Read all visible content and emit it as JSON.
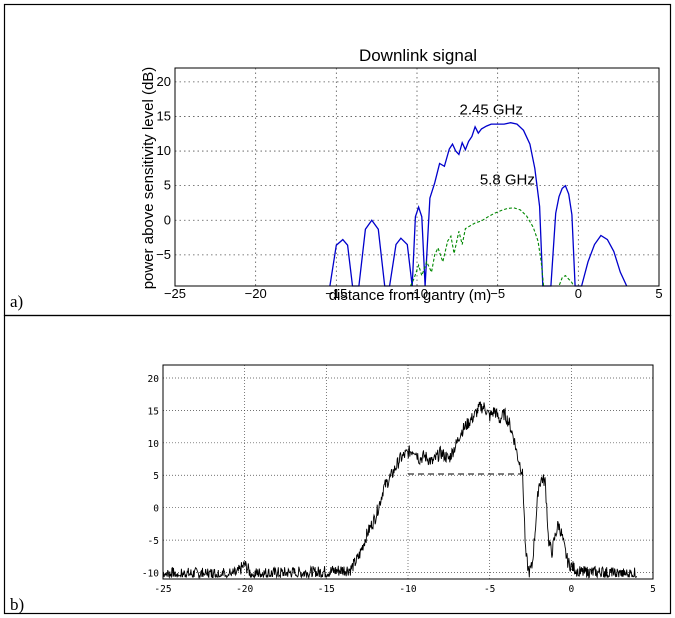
{
  "panels": {
    "a_label": "a)",
    "b_label": "b)"
  },
  "colors": {
    "blue_series": "#0000cc",
    "green_series": "#008800",
    "black_series": "#000000"
  },
  "chart_data": [
    {
      "type": "line",
      "title": "Downlink signal",
      "xlabel": "distance from gantry (m)",
      "ylabel": "power above sensitivity level (dB)",
      "xlim": [
        -25,
        5
      ],
      "ylim": [
        -9.5,
        22
      ],
      "x_ticks": [
        -25,
        -20,
        -15,
        -10,
        -5,
        0,
        5
      ],
      "y_ticks": [
        -5,
        0,
        5,
        10,
        15,
        20
      ],
      "grid": true,
      "annotations": [
        {
          "text": "2.45 GHz",
          "x": -5.4,
          "y": 15.3
        },
        {
          "text": "5.8 GHz",
          "x": -4.4,
          "y": 5.2
        }
      ],
      "series": [
        {
          "style": "solid",
          "x": [
            -15.4,
            -15.0,
            -14.6,
            -14.3,
            -14.0,
            -13.6,
            -13.2,
            -12.8,
            -12.4,
            -12.0,
            -11.7,
            -11.3,
            -11.0,
            -10.6,
            -10.3,
            -10.1,
            -9.9,
            -9.7,
            -9.5,
            -9.2,
            -8.9,
            -8.6,
            -8.3,
            -8.0,
            -7.8,
            -7.6,
            -7.4,
            -7.2,
            -7.0,
            -6.8,
            -6.6,
            -6.4,
            -6.2,
            -6.0,
            -5.7,
            -5.4,
            -5.0,
            -4.6,
            -4.2,
            -3.8,
            -3.4,
            -3.0,
            -2.7,
            -2.4,
            -2.2,
            -2.0,
            -1.7,
            -1.4,
            -1.2,
            -1.0,
            -0.8,
            -0.6,
            -0.4,
            -0.2,
            0.0,
            0.2,
            0.6,
            1.0,
            1.4,
            1.8,
            2.2,
            2.6,
            3.0
          ],
          "y": [
            -9.5,
            -3.6,
            -2.8,
            -3.6,
            -9.5,
            -9.5,
            -1.3,
            0.0,
            -1.3,
            -9.5,
            -9.5,
            -3.5,
            -2.6,
            -3.5,
            -9.5,
            0.5,
            1.9,
            0.5,
            -9.5,
            3.2,
            5.4,
            8.2,
            7.8,
            10.3,
            11.0,
            10.0,
            9.5,
            11.2,
            10.2,
            11.4,
            12.1,
            13.5,
            12.6,
            13.2,
            13.6,
            13.9,
            13.9,
            13.9,
            14.1,
            13.9,
            13.0,
            11.0,
            7.5,
            2.0,
            -9.5,
            -9.5,
            -9.5,
            1.0,
            3.4,
            4.6,
            5.0,
            3.8,
            0.8,
            -9.5,
            -9.5,
            -9.5,
            -6.0,
            -3.5,
            -2.2,
            -2.8,
            -4.5,
            -7.5,
            -9.5
          ]
        },
        {
          "style": "dashed",
          "x": [
            -10.4,
            -10.2,
            -9.9,
            -9.7,
            -9.4,
            -9.1,
            -8.9,
            -8.7,
            -8.4,
            -8.1,
            -7.9,
            -7.7,
            -7.4,
            -7.2,
            -7.0,
            -6.7,
            -6.4,
            -6.0,
            -5.6,
            -5.2,
            -4.8,
            -4.4,
            -4.0,
            -3.6,
            -3.2,
            -2.8,
            -2.5,
            -2.3,
            -2.15,
            -1.2,
            -1.0,
            -0.8,
            -0.6,
            -0.4,
            -0.3
          ],
          "y": [
            -9.5,
            -8.5,
            -6.5,
            -8.0,
            -6.0,
            -7.5,
            -5.0,
            -4.0,
            -6.0,
            -3.0,
            -2.3,
            -4.8,
            -1.6,
            -3.5,
            -1.2,
            -0.8,
            -0.4,
            -0.1,
            0.5,
            1.0,
            1.4,
            1.7,
            1.8,
            1.5,
            0.6,
            -1.0,
            -3.0,
            -6.0,
            -9.5,
            -9.5,
            -8.3,
            -8.0,
            -8.5,
            -9.0,
            -9.5
          ]
        }
      ]
    },
    {
      "type": "line",
      "xlim": [
        -25,
        5
      ],
      "ylim": [
        -11,
        22
      ],
      "x_ticks": [
        -25,
        -20,
        -15,
        -10,
        -5,
        0,
        5
      ],
      "y_ticks": [
        -10,
        -5,
        0,
        5,
        10,
        15,
        20
      ],
      "grid": true,
      "dashed_reference": {
        "x_start": -10.0,
        "x_end": -3.0,
        "y": 5.2
      },
      "series": [
        {
          "style": "noisy",
          "noise_amp": 1.0,
          "x": [
            -25.0,
            -20.5,
            -20.0,
            -19.6,
            -15.5,
            -13.5,
            -13.0,
            -12.5,
            -12.0,
            -11.7,
            -11.5,
            -11.0,
            -10.5,
            -10.0,
            -9.6,
            -9.3,
            -9.0,
            -8.5,
            -8.0,
            -7.5,
            -7.0,
            -6.8,
            -6.5,
            -6.0,
            -5.6,
            -5.3,
            -5.0,
            -4.7,
            -4.4,
            -4.1,
            -3.8,
            -3.5,
            -3.3,
            -3.0,
            -2.9,
            -2.8,
            -2.6,
            -2.4,
            -2.2,
            -2.0,
            -1.8,
            -1.6,
            -1.5,
            -1.4,
            -1.2,
            -1.0,
            -0.8,
            -0.6,
            -0.4,
            -0.2,
            0.0,
            0.5,
            1.0,
            1.5,
            2.0,
            2.5,
            3.0,
            3.5,
            4.0
          ],
          "y": [
            -10.2,
            -10.2,
            -8.8,
            -10.2,
            -10.0,
            -9.5,
            -7.5,
            -4.0,
            -1.5,
            1.0,
            3.0,
            5.0,
            7.5,
            8.5,
            9.0,
            7.5,
            8.0,
            7.0,
            8.5,
            7.5,
            10.0,
            11.5,
            12.5,
            14.0,
            15.5,
            15.5,
            14.0,
            15.0,
            13.5,
            14.5,
            13.0,
            10.5,
            8.0,
            5.5,
            0.0,
            -7.0,
            -10.0,
            -9.0,
            -3.0,
            3.5,
            4.5,
            4.0,
            0.0,
            -5.0,
            -7.0,
            -4.5,
            -2.5,
            -4.0,
            -6.5,
            -8.5,
            -9.0,
            -10.0,
            -10.0,
            -10.0,
            -10.0,
            -10.2,
            -10.2,
            -10.2,
            -10.2
          ]
        }
      ]
    }
  ]
}
